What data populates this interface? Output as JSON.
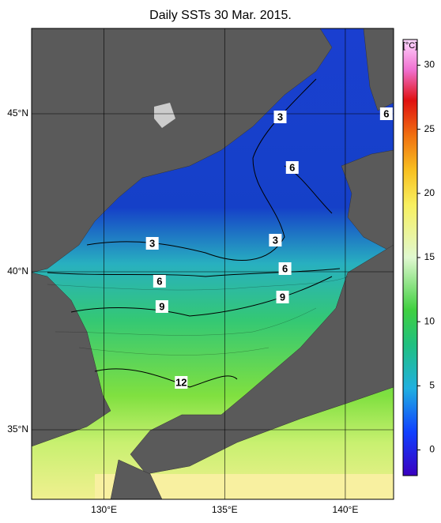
{
  "title": "Daily SSTs 30 Mar. 2015.",
  "map": {
    "lonlim": [
      127,
      142
    ],
    "latlim": [
      32.8,
      47.7
    ],
    "lat_labels": [
      {
        "value": 45,
        "label": "45°N"
      },
      {
        "value": 40,
        "label": "40°N"
      },
      {
        "value": 35,
        "label": "35°N"
      }
    ],
    "lon_labels": [
      {
        "value": 130,
        "label": "130°E"
      },
      {
        "value": 135,
        "label": "135°E"
      },
      {
        "value": 140,
        "label": "140°E"
      }
    ],
    "contour_labels": [
      {
        "value": 3,
        "lon": 137.3,
        "lat": 44.9
      },
      {
        "value": 6,
        "lon": 141.7,
        "lat": 45.0
      },
      {
        "value": 6,
        "lon": 137.8,
        "lat": 43.3
      },
      {
        "value": 3,
        "lon": 132.0,
        "lat": 40.9
      },
      {
        "value": 3,
        "lon": 137.1,
        "lat": 41.0
      },
      {
        "value": 6,
        "lon": 137.5,
        "lat": 40.1
      },
      {
        "value": 6,
        "lon": 132.3,
        "lat": 39.7
      },
      {
        "value": 9,
        "lon": 132.4,
        "lat": 38.9
      },
      {
        "value": 9,
        "lon": 137.4,
        "lat": 39.2
      },
      {
        "value": 12,
        "lon": 133.2,
        "lat": 36.5
      }
    ]
  },
  "colorbar": {
    "unit": "[°C]",
    "range": [
      -2,
      32
    ],
    "ticks": [
      0,
      5,
      10,
      15,
      20,
      25,
      30
    ]
  }
}
